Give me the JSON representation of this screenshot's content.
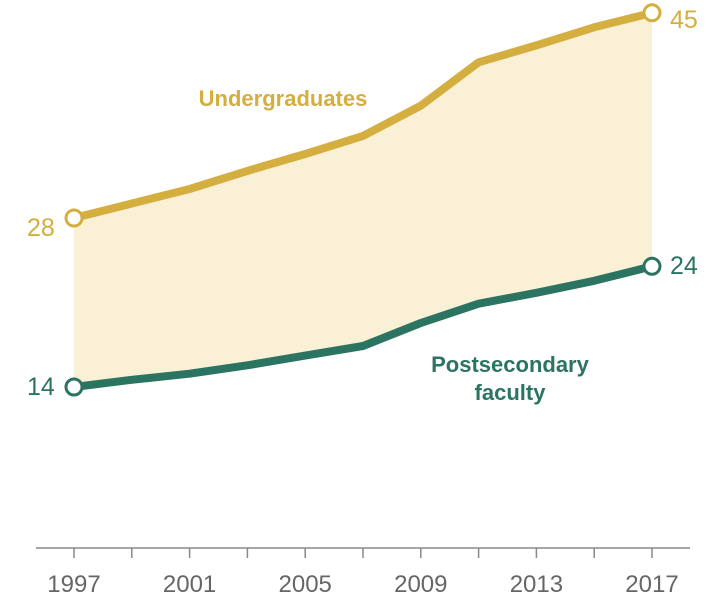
{
  "chart_data": {
    "type": "line",
    "title": "",
    "xlabel": "",
    "ylabel": "",
    "x": [
      1997,
      1999,
      2001,
      2003,
      2005,
      2007,
      2009,
      2011,
      2013,
      2015,
      2017
    ],
    "xticks": [
      "1997",
      "2001",
      "2005",
      "2009",
      "2013",
      "2017"
    ],
    "ylim": [
      0,
      50
    ],
    "grid": false,
    "legend": "none",
    "fill_between_series": true,
    "series": [
      {
        "name": "Undergraduates",
        "color": "#d4ae3f",
        "values": [
          28,
          29.2,
          30.4,
          31.9,
          33.3,
          34.8,
          37.3,
          40.9,
          42.3,
          43.8,
          45.0
        ],
        "start_label": "28",
        "end_label": "45"
      },
      {
        "name": "Postsecondary faculty",
        "name_lines": [
          "Postsecondary",
          "faculty"
        ],
        "color": "#2b7462",
        "values": [
          14,
          14.6,
          15.1,
          15.8,
          16.6,
          17.4,
          19.3,
          20.9,
          21.8,
          22.8,
          24.0
        ],
        "start_label": "14",
        "end_label": "24"
      }
    ],
    "fill_color": "#faf0d6"
  }
}
